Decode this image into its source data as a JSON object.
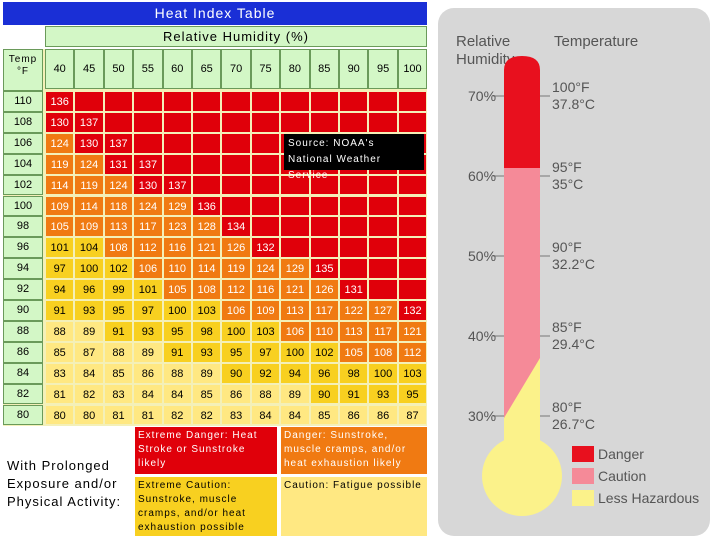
{
  "title": "Heat Index Table",
  "rh_label": "Relative Humidity  (%)",
  "temp_label": "Temp",
  "temp_unit": "°F",
  "source_line1": "Source:   NOAA's",
  "source_line2": "National Weather Service",
  "prolonged_text": "With Prolonged Exposure and/or Physical Activity:",
  "legend_boxes": [
    {
      "text": "Extreme Danger: Heat Stroke or Sunstroke likely",
      "color": "#e0000a"
    },
    {
      "text": "Danger: Sunstroke, muscle cramps, and/or heat exhaustion likely",
      "color": "#f07a12"
    },
    {
      "text": "Extreme Caution: Sunstroke, muscle cramps, and/or heat exhaustion possible",
      "color": "#f8d020"
    },
    {
      "text": "Caution: Fatigue possible",
      "color": "#ffe882"
    }
  ],
  "colors": {
    "extreme_danger": "#e0000a",
    "danger": "#f07a12",
    "extreme_caution": "#f8d020",
    "caution": "#ffe882"
  },
  "chart_data": [
    {
      "type": "heatmap",
      "title": "Heat Index Table",
      "xlabel": "Relative Humidity  (%)",
      "ylabel": "Temp °F",
      "humidity": [
        40,
        45,
        50,
        55,
        60,
        65,
        70,
        75,
        80,
        85,
        90,
        95,
        100
      ],
      "temperatures": [
        110,
        108,
        106,
        104,
        102,
        100,
        98,
        96,
        94,
        92,
        90,
        88,
        86,
        84,
        82,
        80
      ],
      "values": [
        [
          136,
          null,
          null,
          null,
          null,
          null,
          null,
          null,
          null,
          null,
          null,
          null,
          null
        ],
        [
          130,
          137,
          null,
          null,
          null,
          null,
          null,
          null,
          null,
          null,
          null,
          null,
          null
        ],
        [
          124,
          130,
          137,
          null,
          null,
          null,
          null,
          null,
          null,
          null,
          null,
          null,
          null
        ],
        [
          119,
          124,
          131,
          137,
          null,
          null,
          null,
          null,
          null,
          null,
          null,
          null,
          null
        ],
        [
          114,
          119,
          124,
          130,
          137,
          null,
          null,
          null,
          null,
          null,
          null,
          null,
          null
        ],
        [
          109,
          114,
          118,
          124,
          129,
          136,
          null,
          null,
          null,
          null,
          null,
          null,
          null
        ],
        [
          105,
          109,
          113,
          117,
          123,
          128,
          134,
          null,
          null,
          null,
          null,
          null,
          null
        ],
        [
          101,
          104,
          108,
          112,
          116,
          121,
          126,
          132,
          null,
          null,
          null,
          null,
          null
        ],
        [
          97,
          100,
          102,
          106,
          110,
          114,
          119,
          124,
          129,
          135,
          null,
          null,
          null
        ],
        [
          94,
          96,
          99,
          101,
          105,
          108,
          112,
          116,
          121,
          126,
          131,
          null,
          null
        ],
        [
          91,
          93,
          95,
          97,
          100,
          103,
          106,
          109,
          113,
          117,
          122,
          127,
          132
        ],
        [
          88,
          89,
          91,
          93,
          95,
          98,
          100,
          103,
          106,
          110,
          113,
          117,
          121
        ],
        [
          85,
          87,
          88,
          89,
          91,
          93,
          95,
          97,
          100,
          102,
          105,
          108,
          112
        ],
        [
          83,
          84,
          85,
          86,
          88,
          89,
          90,
          92,
          94,
          96,
          98,
          100,
          103
        ],
        [
          81,
          82,
          83,
          84,
          84,
          85,
          86,
          88,
          89,
          90,
          91,
          93,
          95
        ],
        [
          80,
          80,
          81,
          81,
          82,
          82,
          83,
          84,
          84,
          85,
          86,
          86,
          87
        ]
      ],
      "source": "Source: NOAA's National Weather Service"
    },
    {
      "type": "thermometer",
      "axis_title_left": "Relative\nHumidity",
      "axis_title_right": "Temperature",
      "levels": [
        {
          "humidity": "70%",
          "tempF": "100°F",
          "tempC": "37.8°C"
        },
        {
          "humidity": "60%",
          "tempF": "95°F",
          "tempC": "35°C"
        },
        {
          "humidity": "50%",
          "tempF": "90°F",
          "tempC": "32.2°C"
        },
        {
          "humidity": "40%",
          "tempF": "85°F",
          "tempC": "29.4°C"
        },
        {
          "humidity": "30%",
          "tempF": "80°F",
          "tempC": "26.7°C"
        }
      ],
      "legend": [
        {
          "name": "Danger",
          "color": "#e8101e"
        },
        {
          "name": "Caution",
          "color": "#f58a98"
        },
        {
          "name": "Less Hazardous",
          "color": "#fbf28a"
        }
      ]
    }
  ]
}
